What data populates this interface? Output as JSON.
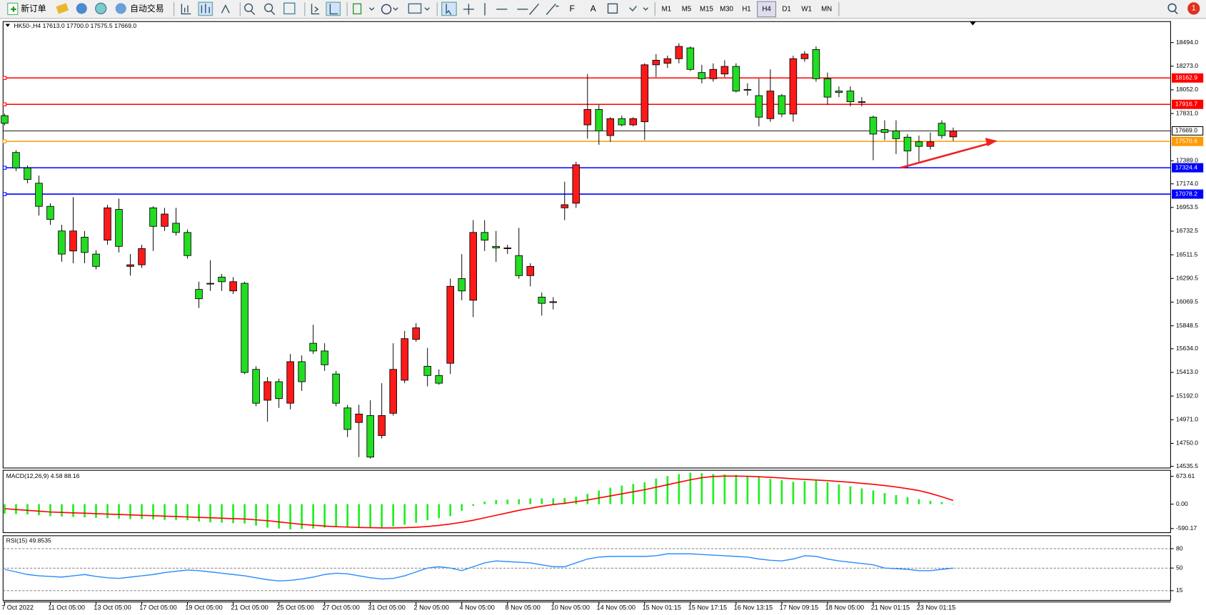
{
  "toolbar": {
    "new_order": "新订单",
    "auto_trading": "自动交易",
    "timeframes": [
      "M1",
      "M5",
      "M15",
      "M30",
      "H1",
      "H4",
      "D1",
      "W1",
      "MN"
    ],
    "active_timeframe": "H4",
    "notifications": 1
  },
  "chart_data": [
    {
      "type": "candlestick",
      "title": "HK50-,H4  17613.0 17700.0 17575.5 17669.0",
      "categories": [
        "7 Oct 2022",
        null,
        null,
        null,
        "11 Oct 05:00",
        null,
        null,
        null,
        "13 Oct 05:00",
        null,
        null,
        null,
        "17 Oct 05:00",
        null,
        null,
        null,
        "19 Oct 05:00",
        null,
        null,
        null,
        "21 Oct 05:00",
        null,
        null,
        null,
        "25 Oct 05:00",
        null,
        null,
        null,
        "27 Oct 05:00",
        null,
        null,
        null,
        "31 Oct 05:00",
        null,
        null,
        null,
        "2 Nov 05:00",
        null,
        null,
        null,
        "4 Nov 05:00",
        null,
        null,
        null,
        "8 Nov 05:00",
        null,
        null,
        null,
        "10 Nov 05:00",
        null,
        null,
        null,
        "14 Nov 05:00",
        null,
        null,
        null,
        "15 Nov 01:15",
        null,
        null,
        null,
        "15 Nov 17:15",
        null,
        null,
        null,
        "16 Nov 13:15",
        null,
        null,
        null,
        "17 Nov 09:15",
        null,
        null,
        null,
        "18 Nov 05:00",
        null,
        null,
        null,
        "21 Nov 01:15",
        null,
        null,
        null,
        "23 Nov 01:15",
        null,
        null,
        null
      ],
      "open": [
        17811,
        17467,
        17323,
        17180,
        16964,
        16734,
        16547,
        16676,
        16518,
        16648,
        16935,
        16403,
        16418,
        16950,
        16777,
        16806,
        16720,
        16188,
        16245,
        16303,
        16174,
        16245,
        15441,
        15153,
        15326,
        15125,
        15513,
        15685,
        15613,
        15398,
        15081,
        14945,
        15010,
        14823,
        15031,
        15340,
        15721,
        15470,
        15384,
        15498,
        16289,
        16087,
        16720,
        16590,
        16576,
        16504,
        16317,
        16116,
        16073,
        16950,
        16993,
        17725,
        17869,
        17625,
        17783,
        17725,
        17754,
        18286,
        18300,
        18343,
        18444,
        18214,
        18156,
        18200,
        18271,
        18056,
        17998,
        17783,
        17998,
        17826,
        18343,
        18429,
        18156,
        18041,
        18041,
        17941,
        17797,
        17682,
        17668,
        17610,
        17567,
        17524,
        17740,
        17613
      ],
      "high": [
        17830,
        17488,
        17345,
        17251,
        16993,
        16791,
        17050,
        16734,
        16554,
        16978,
        17036,
        16518,
        16605,
        16964,
        16950,
        16950,
        16748,
        16260,
        16461,
        16332,
        16303,
        16260,
        15470,
        15369,
        15355,
        15585,
        15571,
        15858,
        15685,
        15427,
        15110,
        15110,
        15153,
        15312,
        15685,
        15800,
        15872,
        15642,
        15441,
        16289,
        16518,
        16835,
        16835,
        16734,
        16605,
        16763,
        16432,
        16159,
        16116,
        17194,
        17380,
        18200,
        17912,
        17797,
        17811,
        17797,
        18300,
        18386,
        18372,
        18487,
        18458,
        18286,
        18300,
        18329,
        18300,
        18113,
        18156,
        18243,
        18013,
        18372,
        18415,
        18458,
        18214,
        18084,
        18084,
        17984,
        17811,
        17768,
        17768,
        17639,
        17625,
        17654,
        17768,
        17700
      ],
      "low": [
        17720,
        17294,
        17180,
        16878,
        16791,
        16446,
        16432,
        16432,
        16375,
        16605,
        16533,
        16317,
        16389,
        16547,
        16734,
        16691,
        16475,
        16015,
        16174,
        16174,
        16145,
        15398,
        15096,
        14952,
        15081,
        15067,
        15240,
        15585,
        15427,
        15096,
        14809,
        14622,
        14607,
        14794,
        15010,
        15312,
        15700,
        15283,
        15297,
        15398,
        16087,
        15929,
        16547,
        16446,
        16519,
        16288,
        16217,
        15943,
        16001,
        16835,
        16950,
        17596,
        17539,
        17567,
        17711,
        17711,
        17582,
        18171,
        18257,
        18300,
        18228,
        18113,
        18128,
        18171,
        18027,
        17998,
        17711,
        17754,
        17797,
        17754,
        18314,
        18128,
        17912,
        17984,
        17898,
        17898,
        17395,
        17582,
        17452,
        17323,
        17380,
        17495,
        17596,
        17575.5
      ],
      "close": [
        17740,
        17323,
        17215,
        16964,
        16842,
        16518,
        16734,
        16533,
        16403,
        16950,
        16590,
        16418,
        16569,
        16777,
        16892,
        16720,
        16504,
        16101,
        16245,
        16260,
        16260,
        15412,
        15125,
        15326,
        15168,
        15513,
        15326,
        15613,
        15484,
        15125,
        14880,
        15024,
        14622,
        15010,
        15441,
        15728,
        15829,
        15384,
        15312,
        16217,
        16174,
        16720,
        16648,
        16576,
        16576,
        16317,
        16403,
        16058,
        16073,
        16979,
        17352,
        17869,
        17668,
        17783,
        17725,
        17783,
        18286,
        18329,
        18343,
        18458,
        18243,
        18156,
        18243,
        18271,
        18041,
        18056,
        17797,
        18041,
        17826,
        18343,
        18386,
        18156,
        17984,
        18027,
        17941,
        17941,
        17639,
        17654,
        17596,
        17481,
        17524,
        17567,
        17625,
        17669
      ],
      "up_color": "#ff1a1a",
      "down_color": "#22dd22",
      "ylim": [
        14520,
        18690
      ],
      "yticks": [
        {
          "value": 18494,
          "label": "18494.0"
        },
        {
          "value": 18273,
          "label": "18273.0"
        },
        {
          "value": 18052,
          "label": "18052.0"
        },
        {
          "value": 17831,
          "label": "17831.0"
        },
        {
          "value": 17389,
          "label": "17389.0"
        },
        {
          "value": 17174,
          "label": "17174.0"
        },
        16953.5,
        16732.5,
        16511.5,
        16290.5,
        16069.5,
        15848.5,
        {
          "value": 15634,
          "label": "15634.0"
        },
        {
          "value": 15413,
          "label": "15413.0"
        },
        {
          "value": 15192,
          "label": "15192.0"
        },
        {
          "value": 14971,
          "label": "14971.0"
        },
        {
          "value": 14750,
          "label": "14750.0"
        },
        14535.5
      ],
      "levels": [
        {
          "value": 18162.9,
          "color": "#ff0000"
        },
        {
          "value": 17916.7,
          "color": "#ff0000"
        },
        {
          "value": 17669,
          "label": "17669.0",
          "color": "#000000"
        },
        {
          "value": 17570.6,
          "color": "#ff9900"
        },
        {
          "value": 17324.4,
          "color": "#0000ff"
        },
        {
          "value": 17078.2,
          "color": "#0000ff"
        }
      ]
    },
    {
      "type": "macd",
      "title": "MACD(12,26,9) 4.58 88.16",
      "histogram": [
        -230,
        -240,
        -250,
        -270,
        -290,
        -300,
        -310,
        -320,
        -330,
        -340,
        -350,
        -360,
        -360,
        -370,
        -380,
        -380,
        -390,
        -420,
        -440,
        -450,
        -460,
        -470,
        -520,
        -570,
        -590,
        -610,
        -600,
        -590,
        -570,
        -560,
        -560,
        -560,
        -560,
        -560,
        -540,
        -500,
        -450,
        -390,
        -340,
        -290,
        -160,
        -40,
        60,
        100,
        110,
        120,
        140,
        140,
        140,
        150,
        180,
        250,
        330,
        400,
        450,
        490,
        530,
        620,
        680,
        730,
        760,
        750,
        730,
        720,
        710,
        680,
        650,
        610,
        580,
        540,
        560,
        570,
        530,
        480,
        430,
        380,
        330,
        270,
        220,
        170,
        120,
        80,
        50,
        4.58
      ],
      "signal": [
        -110,
        -130,
        -150,
        -170,
        -190,
        -200,
        -210,
        -220,
        -230,
        -240,
        -250,
        -260,
        -270,
        -280,
        -290,
        -300,
        -310,
        -320,
        -330,
        -340,
        -350,
        -360,
        -380,
        -400,
        -430,
        -460,
        -490,
        -510,
        -530,
        -545,
        -555,
        -565,
        -570,
        -575,
        -575,
        -570,
        -560,
        -540,
        -515,
        -480,
        -440,
        -390,
        -330,
        -270,
        -210,
        -150,
        -100,
        -50,
        -10,
        20,
        60,
        100,
        150,
        200,
        250,
        300,
        350,
        410,
        470,
        530,
        590,
        640,
        670,
        680,
        680,
        675,
        665,
        650,
        635,
        615,
        600,
        585,
        570,
        550,
        530,
        505,
        480,
        450,
        415,
        375,
        330,
        260,
        180,
        88.16
      ],
      "color": "#22ee22",
      "signal_color": "#ff0000",
      "ylim": [
        -690,
        820
      ],
      "yticks": [
        673.61,
        {
          "value": 0,
          "label": "0.00"
        },
        -590.17
      ]
    },
    {
      "type": "line",
      "title": "RSI(15) 49.8535",
      "values": [
        48,
        44,
        40,
        38,
        37,
        36,
        38,
        40,
        37,
        35,
        34,
        36,
        38,
        40,
        43,
        45,
        47,
        46,
        44,
        42,
        40,
        38,
        35,
        32,
        30,
        31,
        33,
        36,
        40,
        42,
        41,
        38,
        35,
        33,
        34,
        38,
        44,
        50,
        52,
        50,
        46,
        52,
        58,
        61,
        60,
        59,
        58,
        55,
        52,
        52,
        58,
        64,
        67,
        68,
        68,
        68,
        68,
        69,
        72,
        72,
        72,
        71,
        70,
        69,
        68,
        67,
        64,
        62,
        61,
        64,
        69,
        68,
        64,
        61,
        59,
        57,
        55,
        50,
        49,
        48,
        46,
        46,
        48,
        49.8535
      ],
      "color": "#2b8cff",
      "ylim": [
        0,
        100
      ],
      "yticks": [
        80,
        50,
        15
      ],
      "grid": true
    }
  ]
}
